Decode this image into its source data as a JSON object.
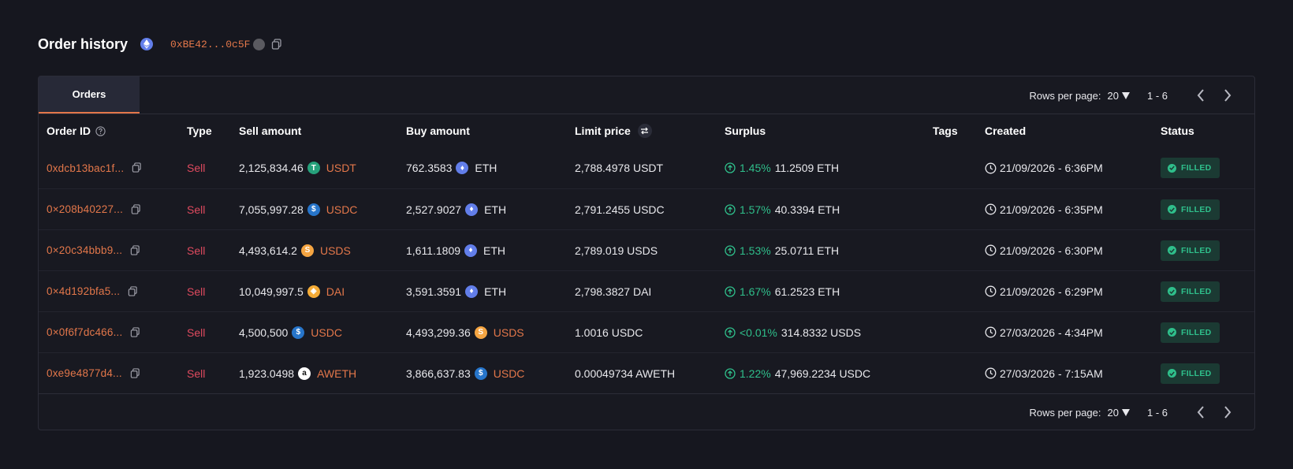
{
  "header": {
    "title": "Order history",
    "address": "0xBE42...0c5F"
  },
  "tabs": [
    {
      "label": "Orders"
    }
  ],
  "pagination": {
    "rows_label": "Rows per page:",
    "rows_value": "20",
    "range": "1 - 6"
  },
  "columns": {
    "order_id": "Order ID",
    "type": "Type",
    "sell": "Sell amount",
    "buy": "Buy amount",
    "limit": "Limit price",
    "surplus": "Surplus",
    "tags": "Tags",
    "created": "Created",
    "status": "Status"
  },
  "rows": [
    {
      "id": "0xdcb13bac1f...",
      "type": "Sell",
      "sell_amount": "2,125,834.46",
      "sell_token": "USDT",
      "buy_amount": "762.3583",
      "buy_token": "ETH",
      "limit_price": "2,788.4978 USDT",
      "surplus_pct": "1.45%",
      "surplus_amount": "11.2509 ETH",
      "created": "21/09/2026 - 6:36PM",
      "status": "FILLED"
    },
    {
      "id": "0×208b40227...",
      "type": "Sell",
      "sell_amount": "7,055,997.28",
      "sell_token": "USDC",
      "buy_amount": "2,527.9027",
      "buy_token": "ETH",
      "limit_price": "2,791.2455 USDC",
      "surplus_pct": "1.57%",
      "surplus_amount": "40.3394 ETH",
      "created": "21/09/2026 - 6:35PM",
      "status": "FILLED"
    },
    {
      "id": "0×20c34bbb9...",
      "type": "Sell",
      "sell_amount": "4,493,614.2",
      "sell_token": "USDS",
      "buy_amount": "1,611.1809",
      "buy_token": "ETH",
      "limit_price": "2,789.019 USDS",
      "surplus_pct": "1.53%",
      "surplus_amount": "25.0711 ETH",
      "created": "21/09/2026 - 6:30PM",
      "status": "FILLED"
    },
    {
      "id": "0×4d192bfa5...",
      "type": "Sell",
      "sell_amount": "10,049,997.5",
      "sell_token": "DAI",
      "buy_amount": "3,591.3591",
      "buy_token": "ETH",
      "limit_price": "2,798.3827 DAI",
      "surplus_pct": "1.67%",
      "surplus_amount": "61.2523 ETH",
      "created": "21/09/2026 - 6:29PM",
      "status": "FILLED"
    },
    {
      "id": "0×0f6f7dc466...",
      "type": "Sell",
      "sell_amount": "4,500,500",
      "sell_token": "USDC",
      "buy_amount": "4,493,299.36",
      "buy_token": "USDS",
      "limit_price": "1.0016 USDC",
      "surplus_pct": "<0.01%",
      "surplus_amount": "314.8332 USDS",
      "created": "27/03/2026 - 4:34PM",
      "status": "FILLED"
    },
    {
      "id": "0xe9e4877d4...",
      "type": "Sell",
      "sell_amount": "1,923.0498",
      "sell_token": "AWETH",
      "buy_amount": "3,866,637.83",
      "buy_token": "USDC",
      "limit_price": "0.00049734 AWETH",
      "surplus_pct": "1.22%",
      "surplus_amount": "47,969.2234 USDC",
      "created": "27/03/2026 - 7:15AM",
      "status": "FILLED"
    }
  ],
  "colors": {
    "accent": "#e3774a",
    "sell": "#e04a5f",
    "success": "#2fbf8b",
    "background": "#16171f"
  }
}
